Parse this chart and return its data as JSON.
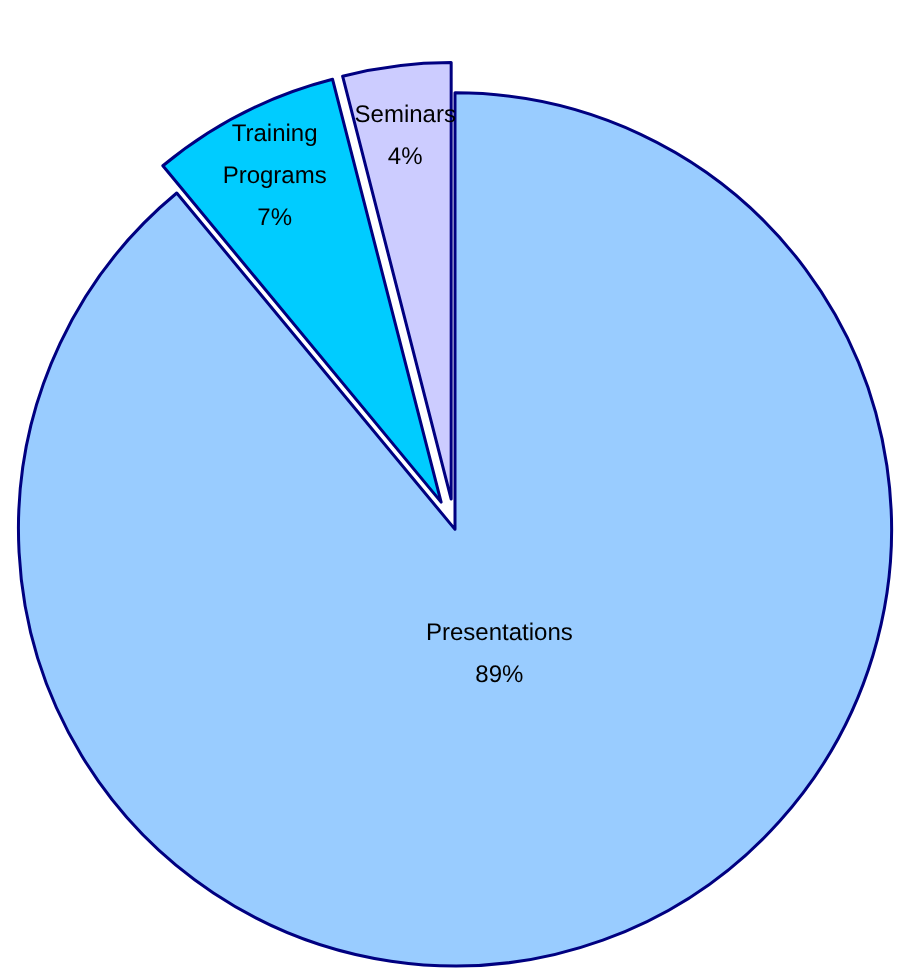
{
  "chart_data": {
    "type": "pie",
    "categories": [
      "Presentations",
      "Training Programs",
      "Seminars"
    ],
    "values": [
      89,
      7,
      4
    ],
    "colors": [
      "#99ccff",
      "#00ccff",
      "#ccccff"
    ],
    "value_labels": [
      "89%",
      "7%",
      "4%"
    ]
  }
}
